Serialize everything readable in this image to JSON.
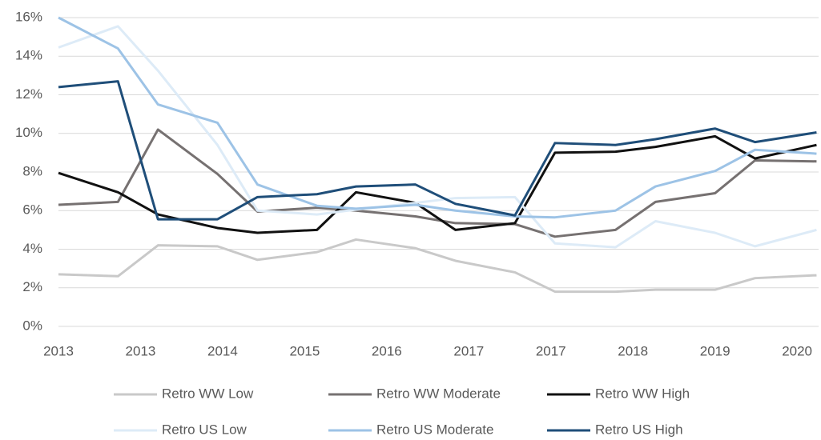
{
  "chart_data": {
    "type": "line",
    "x": [
      2013.0,
      2013.58,
      2013.97,
      2014.55,
      2014.94,
      2015.52,
      2015.9,
      2016.48,
      2016.87,
      2017.45,
      2017.84,
      2018.43,
      2018.82,
      2019.4,
      2019.79,
      2020.39
    ],
    "xlim": [
      2013.0,
      2020.41
    ],
    "xticks": [
      {
        "value": 2013.0,
        "label": "2013"
      },
      {
        "value": 2013.8,
        "label": "2013"
      },
      {
        "value": 2014.6,
        "label": "2014"
      },
      {
        "value": 2015.4,
        "label": "2015"
      },
      {
        "value": 2016.2,
        "label": "2016"
      },
      {
        "value": 2017.0,
        "label": "2017"
      },
      {
        "value": 2017.8,
        "label": "2017"
      },
      {
        "value": 2018.6,
        "label": "2018"
      },
      {
        "value": 2019.4,
        "label": "2019"
      },
      {
        "value": 2020.2,
        "label": "2020"
      }
    ],
    "ylim": [
      0,
      16
    ],
    "yticks": [
      {
        "value": 0,
        "label": "0%"
      },
      {
        "value": 2,
        "label": "2%"
      },
      {
        "value": 4,
        "label": "4%"
      },
      {
        "value": 6,
        "label": "6%"
      },
      {
        "value": 8,
        "label": "8%"
      },
      {
        "value": 10,
        "label": "10%"
      },
      {
        "value": 12,
        "label": "12%"
      },
      {
        "value": 14,
        "label": "14%"
      },
      {
        "value": 16,
        "label": "16%"
      }
    ],
    "grid": true,
    "legend": "bottom",
    "series": [
      {
        "name": "Retro WW Low",
        "color": "#c9c9c9",
        "values": [
          2.7,
          2.6,
          4.2,
          4.15,
          3.45,
          3.85,
          4.5,
          4.05,
          3.4,
          2.8,
          1.8,
          1.8,
          1.9,
          1.9,
          2.5,
          2.65
        ]
      },
      {
        "name": "Retro WW Moderate",
        "color": "#767171",
        "values": [
          6.3,
          6.45,
          10.2,
          7.9,
          5.95,
          6.15,
          6.0,
          5.7,
          5.35,
          5.3,
          4.65,
          5.0,
          6.45,
          6.9,
          8.6,
          8.55
        ]
      },
      {
        "name": "Retro WW High",
        "color": "#111111",
        "values": [
          7.95,
          6.95,
          5.8,
          5.1,
          4.85,
          5.0,
          6.95,
          6.4,
          5.0,
          5.35,
          9.0,
          9.05,
          9.3,
          9.85,
          8.7,
          9.4
        ]
      },
      {
        "name": "Retro US Low",
        "color": "#ddebf7",
        "values": [
          14.45,
          15.55,
          13.25,
          9.4,
          6.0,
          5.8,
          6.05,
          6.4,
          6.65,
          6.7,
          4.3,
          4.1,
          5.45,
          4.85,
          4.15,
          5.0
        ]
      },
      {
        "name": "Retro US Moderate",
        "color": "#9dc3e6",
        "values": [
          16.0,
          14.4,
          11.5,
          10.55,
          7.35,
          6.25,
          6.1,
          6.3,
          6.0,
          5.7,
          5.65,
          6.0,
          7.25,
          8.05,
          9.15,
          8.95
        ]
      },
      {
        "name": "Retro US High",
        "color": "#1f4e79",
        "values": [
          12.4,
          12.7,
          5.55,
          5.55,
          6.7,
          6.85,
          7.25,
          7.35,
          6.35,
          5.75,
          9.5,
          9.4,
          9.7,
          10.25,
          9.55,
          10.05
        ]
      }
    ]
  }
}
